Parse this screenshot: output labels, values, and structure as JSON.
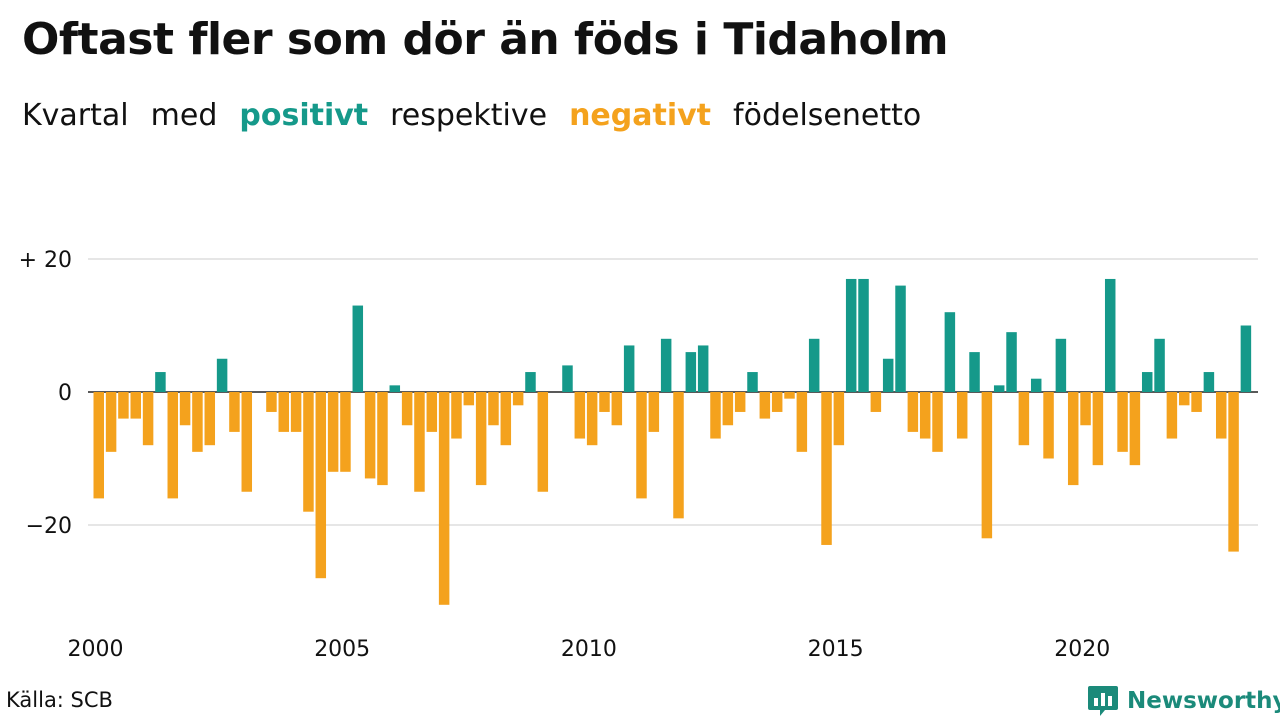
{
  "header": {
    "title": "Oftast fler som dör än föds i Tidaholm",
    "subtitle_parts": [
      "Kvartal",
      "med",
      "positivt",
      "respektive",
      "negativt",
      "födelsenetto"
    ]
  },
  "colors": {
    "positive": "#15998a",
    "negative": "#f4a21d",
    "grid": "#dddddd",
    "brand": "#1b8a7a"
  },
  "chart_data": {
    "type": "bar",
    "y_tick_labels": [
      "+ 20",
      "0",
      "−20"
    ],
    "y_ticks": [
      20,
      0,
      -20
    ],
    "ylim": [
      -33,
      21
    ],
    "x_tick_labels": [
      "2000",
      "2005",
      "2010",
      "2015",
      "2020"
    ],
    "x_ticks": [
      2000,
      2005,
      2010,
      2015,
      2020
    ],
    "start_quarter": "2000 Q1",
    "grid": true,
    "values": [
      -16,
      -9,
      -4,
      -4,
      -8,
      3,
      -16,
      -5,
      -9,
      -8,
      5,
      -6,
      -15,
      0,
      -3,
      -6,
      -6,
      -18,
      -28,
      -12,
      -12,
      13,
      -13,
      -14,
      1,
      -5,
      -15,
      -6,
      -32,
      -7,
      -2,
      -14,
      -5,
      -8,
      -2,
      3,
      -15,
      0,
      4,
      -7,
      -8,
      -3,
      -5,
      7,
      -16,
      -6,
      8,
      -19,
      6,
      7,
      -7,
      -5,
      -3,
      3,
      -4,
      -3,
      -1,
      -9,
      8,
      -23,
      -8,
      17,
      17,
      -3,
      5,
      16,
      -6,
      -7,
      -9,
      12,
      -7,
      6,
      -22,
      1,
      9,
      -8,
      2,
      -10,
      8,
      -14,
      -5,
      -11,
      17,
      -9,
      -11,
      3,
      8,
      -7,
      -2,
      -3,
      3,
      -7,
      -24,
      10
    ]
  },
  "footer": {
    "source": "Källa: SCB",
    "brand": "Newsworthy"
  }
}
